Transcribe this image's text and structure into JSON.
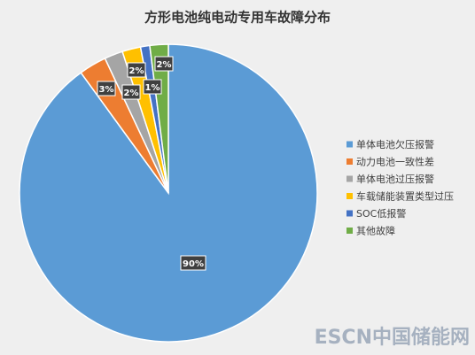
{
  "chart_data": {
    "type": "pie",
    "title": "方形电池纯电动专用车故障分布",
    "categories": [
      "单体电池欠压报警",
      "动力电池一致性差",
      "单体电池过压报警",
      "车载储能装置类型过压",
      "SOC低报警",
      "其他故障"
    ],
    "values": [
      90,
      3,
      2,
      2,
      1,
      2
    ],
    "value_labels": [
      "90%",
      "3%",
      "2%",
      "2%",
      "1%",
      "2%"
    ],
    "colors": [
      "#5b9bd5",
      "#ed7d31",
      "#a5a5a5",
      "#ffc000",
      "#4472c4",
      "#70ad47"
    ],
    "legend": "right",
    "watermark": "ESCN中国储能网"
  }
}
